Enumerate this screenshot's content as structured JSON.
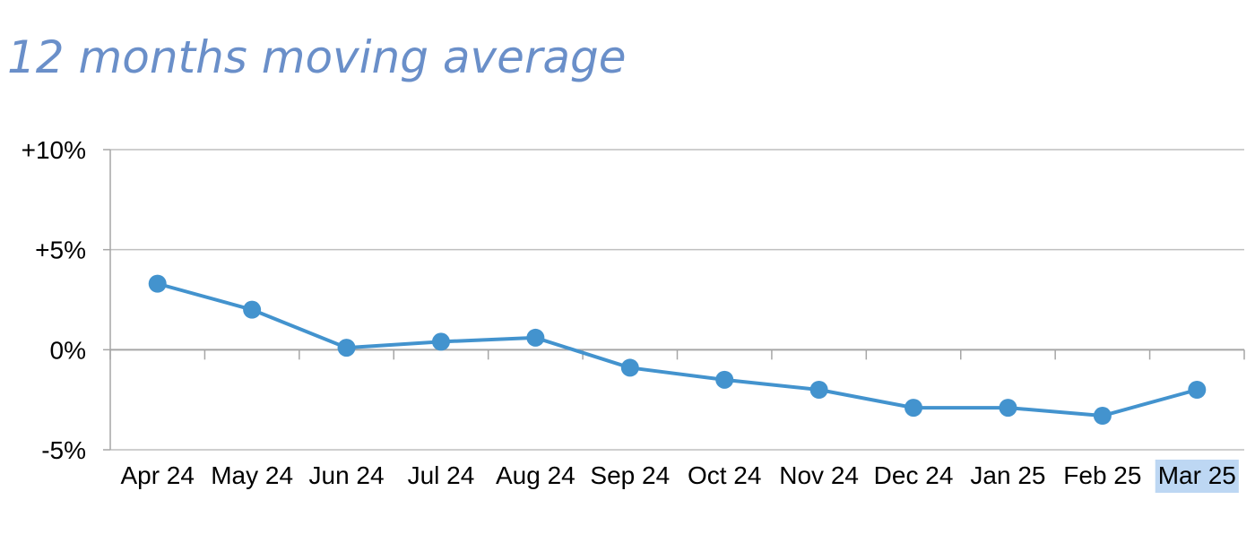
{
  "colors": {
    "title": "#6A8FC9",
    "series": "#4393CE",
    "gridline": "#BFBFBF",
    "axis": "#A6A6A6",
    "highlight": "#BDD7F3"
  },
  "chart_data": {
    "type": "line",
    "title": "12 months moving average",
    "categories": [
      "Apr 24",
      "May 24",
      "Jun 24",
      "Jul 24",
      "Aug 24",
      "Sep 24",
      "Oct 24",
      "Nov 24",
      "Dec 24",
      "Jan 25",
      "Feb 25",
      "Mar 25"
    ],
    "series": [
      {
        "values": [
          3.3,
          2.0,
          0.1,
          0.4,
          0.6,
          -0.9,
          -1.5,
          -2.0,
          -2.9,
          -2.9,
          -3.3,
          -2.0
        ]
      }
    ],
    "ylim": [
      -5,
      10
    ],
    "yticks": [
      10,
      5,
      0,
      -5
    ],
    "ytick_labels": [
      "+10%",
      "+5%",
      "0%",
      "-5%"
    ],
    "grid": true,
    "highlighted_category": "Mar 25"
  }
}
